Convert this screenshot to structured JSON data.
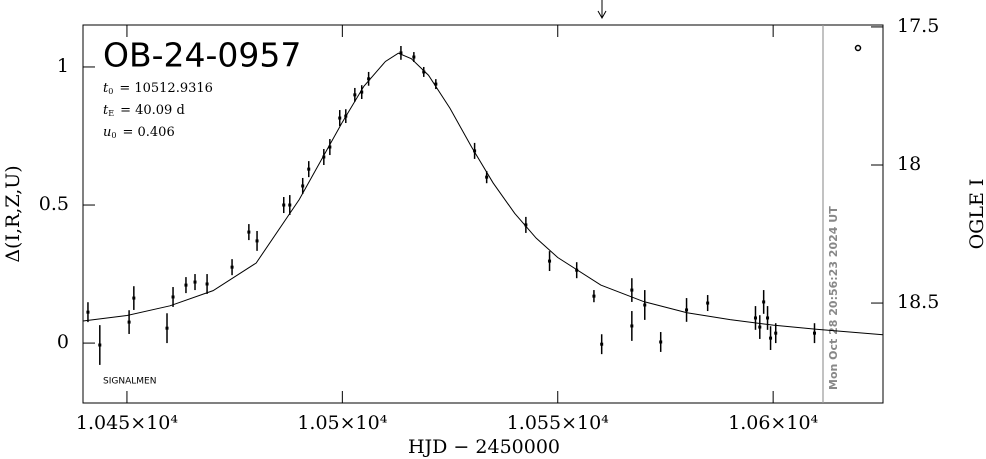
{
  "chart_data": {
    "type": "scatter",
    "title": "OB-24-0957",
    "params": [
      {
        "symbol": "t",
        "subscript": "0",
        "text": "= 10512.9316"
      },
      {
        "symbol": "t",
        "subscript": "E",
        "text": "= 40.09 d"
      },
      {
        "symbol": "u",
        "subscript": "0",
        "text": "= 0.406"
      }
    ],
    "note": "SIGNALMEN",
    "timestamp": "Mon Oct 28 20:56:23 2024 UT",
    "x_label": "HJD − 2450000",
    "y_label": "Δ(I,R,Z,U)",
    "y2_label": "OGLE I",
    "xlim": [
      10439.8,
      10625.5
    ],
    "xticks": [
      {
        "value": 10450,
        "label": "1.045×10⁴"
      },
      {
        "value": 10500,
        "label": "1.05×10⁴"
      },
      {
        "value": 10550,
        "label": "1.055×10⁴"
      },
      {
        "value": 10600,
        "label": "1.06×10⁴"
      }
    ],
    "ylim": [
      -0.217,
      1.152
    ],
    "yticks": [
      0,
      0.5,
      1
    ],
    "y2lim": [
      18.862,
      17.493
    ],
    "y2ticks": [
      17.5,
      18,
      18.5
    ],
    "points": {
      "color": "#000000",
      "x": [
        10440.95,
        10443.7,
        10450.5,
        10451.6,
        10459.3,
        10460.7,
        10463.7,
        10465.8,
        10468.6,
        10474.4,
        10478.3,
        10480.2,
        10486.4,
        10487.8,
        10490.8,
        10492.2,
        10495.7,
        10497.1,
        10499.4,
        10500.8,
        10502.9,
        10504.5,
        10506.1,
        10513.6,
        10516.6,
        10518.9,
        10521.7,
        10530.7,
        10533.5,
        10542.6,
        10548.1,
        10554.4,
        10558.4,
        10560.2,
        10567.2,
        10567.2,
        10570.2,
        10573.9,
        10579.9,
        10584.8,
        10595.9,
        10596.9,
        10597.8,
        10598.7,
        10599.4,
        10600.6,
        10609.6
      ],
      "values": [
        0.112,
        -0.007,
        0.076,
        0.163,
        0.054,
        0.167,
        0.21,
        0.221,
        0.214,
        0.275,
        0.402,
        0.37,
        0.5,
        0.5,
        0.569,
        0.63,
        0.674,
        0.71,
        0.815,
        0.822,
        0.899,
        0.909,
        0.957,
        1.051,
        1.036,
        0.982,
        0.938,
        0.696,
        0.601,
        0.428,
        0.297,
        0.264,
        0.17,
        -0.004,
        0.192,
        0.062,
        0.138,
        0.004,
        0.12,
        0.145,
        0.091,
        0.058,
        0.149,
        0.091,
        0.018,
        0.036,
        0.036
      ],
      "errors": [
        0.036,
        0.072,
        0.043,
        0.043,
        0.054,
        0.036,
        0.029,
        0.029,
        0.036,
        0.029,
        0.029,
        0.036,
        0.029,
        0.036,
        0.029,
        0.029,
        0.029,
        0.029,
        0.029,
        0.025,
        0.025,
        0.025,
        0.025,
        0.025,
        0.018,
        0.018,
        0.018,
        0.029,
        0.022,
        0.029,
        0.036,
        0.029,
        0.022,
        0.036,
        0.043,
        0.054,
        0.054,
        0.036,
        0.043,
        0.029,
        0.043,
        0.043,
        0.043,
        0.043,
        0.043,
        0.036,
        0.036
      ]
    },
    "model": {
      "color": "#000000",
      "x": [
        10439.8,
        10450,
        10460,
        10470,
        10480,
        10490,
        10500,
        10505,
        10510,
        10513,
        10516,
        10520,
        10525,
        10530,
        10535,
        10540,
        10545,
        10550,
        10560,
        10570,
        10580,
        10590,
        10600,
        10610,
        10625.5
      ],
      "values": [
        0.08,
        0.1,
        0.135,
        0.19,
        0.29,
        0.52,
        0.8,
        0.93,
        1.02,
        1.05,
        1.03,
        0.97,
        0.85,
        0.71,
        0.58,
        0.47,
        0.38,
        0.31,
        0.21,
        0.15,
        0.11,
        0.085,
        0.065,
        0.05,
        0.03
      ]
    }
  }
}
